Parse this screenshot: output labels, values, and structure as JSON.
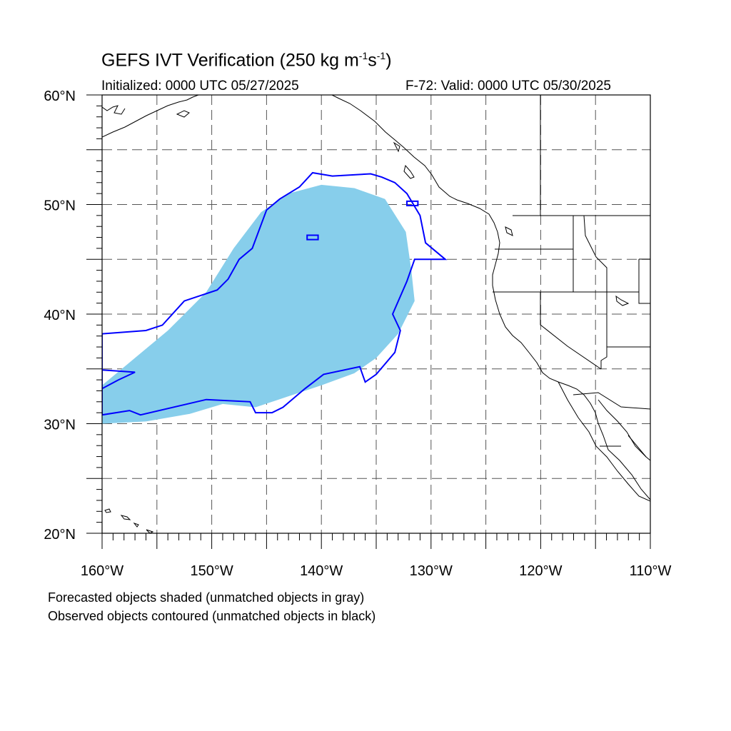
{
  "title": {
    "main": "GEFS IVT Verification (250 kg m",
    "exp1": "-1",
    "mid": "s",
    "exp2": "-1",
    "end": ")"
  },
  "initialized": "Initialized: 0000 UTC 05/27/2025",
  "valid": "F-72: Valid: 0000 UTC 05/30/2025",
  "notes": {
    "forecast": "Forecasted objects shaded (unmatched objects in gray)",
    "observed": "Observed objects contoured (unmatched objects in black)"
  },
  "map": {
    "lon_range": [
      -160,
      -110
    ],
    "lat_range": [
      20,
      60
    ],
    "lon_labels": [
      {
        "lon": -160,
        "text": "160°W"
      },
      {
        "lon": -150,
        "text": "150°W"
      },
      {
        "lon": -140,
        "text": "140°W"
      },
      {
        "lon": -130,
        "text": "130°W"
      },
      {
        "lon": -120,
        "text": "120°W"
      },
      {
        "lon": -110,
        "text": "110°W"
      }
    ],
    "lat_labels": [
      {
        "lat": 60,
        "text": "60°N"
      },
      {
        "lat": 50,
        "text": "50°N"
      },
      {
        "lat": 40,
        "text": "40°N"
      },
      {
        "lat": 30,
        "text": "30°N"
      },
      {
        "lat": 20,
        "text": "20°N"
      }
    ],
    "grid_lon_step": 5,
    "grid_lat_step": 5,
    "colors": {
      "forecast_fill": "#87ceeb",
      "observed_contour": "#0000ff",
      "coast": "#000000",
      "grid": "#555555"
    },
    "forecast_object": [
      [
        -160,
        30.0
      ],
      [
        -156,
        30.2
      ],
      [
        -152,
        30.9
      ],
      [
        -149,
        31.8
      ],
      [
        -146,
        31.5
      ],
      [
        -143,
        32.5
      ],
      [
        -140,
        33.5
      ],
      [
        -137,
        34.6
      ],
      [
        -135,
        36.0
      ],
      [
        -133,
        38.2
      ],
      [
        -131.5,
        41.2
      ],
      [
        -131.8,
        44.0
      ],
      [
        -132.3,
        47.5
      ],
      [
        -134.2,
        50.5
      ],
      [
        -137.0,
        51.5
      ],
      [
        -140.0,
        51.8
      ],
      [
        -143.0,
        51.0
      ],
      [
        -145.5,
        49.3
      ],
      [
        -148.0,
        46.0
      ],
      [
        -150.5,
        42.0
      ],
      [
        -154.0,
        38.5
      ],
      [
        -157.0,
        36.0
      ],
      [
        -160.0,
        33.5
      ]
    ],
    "observed_objects": [
      [
        [
          -160,
          30.8
        ],
        [
          -157.5,
          31.2
        ],
        [
          -156.5,
          30.8
        ],
        [
          -150.5,
          32.2
        ],
        [
          -146.5,
          32.0
        ],
        [
          -146.0,
          31.0
        ],
        [
          -144.5,
          31.0
        ],
        [
          -143.5,
          31.5
        ],
        [
          -141.5,
          33.2
        ],
        [
          -139.8,
          34.5
        ],
        [
          -136.5,
          35.2
        ],
        [
          -136.0,
          33.8
        ],
        [
          -135.0,
          34.5
        ],
        [
          -133.3,
          36.5
        ],
        [
          -132.8,
          38.5
        ],
        [
          -133.5,
          40.0
        ],
        [
          -132.2,
          43.0
        ],
        [
          -131.5,
          45.0
        ],
        [
          -128.7,
          45.0
        ],
        [
          -130.5,
          46.5
        ],
        [
          -131.0,
          49.0
        ],
        [
          -132.2,
          51.0
        ],
        [
          -133.3,
          52.0
        ],
        [
          -134.5,
          52.5
        ],
        [
          -135.5,
          52.8
        ],
        [
          -139.0,
          52.6
        ],
        [
          -140.8,
          52.9
        ],
        [
          -142.0,
          51.6
        ],
        [
          -143.8,
          50.5
        ],
        [
          -145.0,
          49.5
        ],
        [
          -146.3,
          46.0
        ],
        [
          -147.5,
          45.0
        ],
        [
          -148.5,
          43.2
        ],
        [
          -149.5,
          42.2
        ],
        [
          -152.5,
          41.2
        ],
        [
          -154.5,
          39.0
        ],
        [
          -156.0,
          38.5
        ],
        [
          -160.0,
          38.2
        ]
      ],
      [
        [
          -160,
          33.2
        ],
        [
          -158.5,
          34.0
        ],
        [
          -157.0,
          34.7
        ],
        [
          -160.0,
          34.9
        ]
      ],
      [
        [
          -141.3,
          46.8
        ],
        [
          -140.3,
          46.8
        ],
        [
          -140.3,
          47.2
        ],
        [
          -141.3,
          47.2
        ]
      ],
      [
        [
          -132.2,
          49.9
        ],
        [
          -131.2,
          49.9
        ],
        [
          -131.2,
          50.3
        ],
        [
          -132.2,
          50.3
        ]
      ]
    ]
  }
}
